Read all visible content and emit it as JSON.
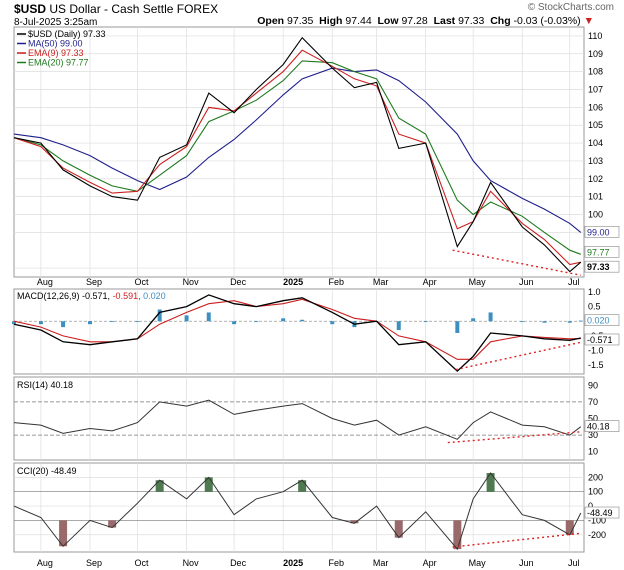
{
  "header": {
    "symbol": "$USD",
    "name": "US Dollar - Cash Settle",
    "exchange": "FOREX",
    "date": "8-Jul-2025 3:25am",
    "watermark": "© StockCharts.com",
    "open_label": "Open",
    "open": "97.35",
    "high_label": "High",
    "high": "97.44",
    "low_label": "Low",
    "low": "97.28",
    "last_label": "Last",
    "last": "97.33",
    "chg_label": "Chg",
    "chg": "-0.03 (-0.03%)",
    "chg_arrow": "▼"
  },
  "colors": {
    "price": "#000000",
    "ma50": "#1f1f8c",
    "ema9": "#cc1f1f",
    "ema20": "#1f7a1f",
    "trend": "#dd2222",
    "hist": "#3d8fbf",
    "cci_pos": "#4f7a4f",
    "cci_neg": "#9a6a6a",
    "border": "#9a9a9a",
    "grid": "#dddddd"
  },
  "x_labels": [
    "Aug",
    "Sep",
    "Oct",
    "Nov",
    "Dec",
    "2025",
    "Feb",
    "Mar",
    "Apr",
    "May",
    "Jun",
    "Jul"
  ],
  "price_panel": {
    "legend": [
      {
        "text": "$USD (Daily) 97.33",
        "color": "#000000"
      },
      {
        "text": "MA(50) 99.00",
        "color": "#1f1f8c"
      },
      {
        "text": "EMA(9) 97.33",
        "color": "#cc1f1f"
      },
      {
        "text": "EMA(20) 97.77",
        "color": "#1f7a1f"
      }
    ],
    "y_ticks": [
      "110",
      "109",
      "108",
      "107",
      "106",
      "105",
      "104",
      "103",
      "102",
      "101",
      "100",
      "99",
      "97"
    ],
    "tags": {
      "ma50": "99.00",
      "ema20": "97.77",
      "last": "97.33"
    }
  },
  "macd_panel": {
    "label": "MACD(12,26,9)",
    "macd": "-0.571",
    "signal": "-0.591",
    "hist": "0.020",
    "y_ticks": [
      "1.0",
      "0.5",
      "0.0",
      "-0.5",
      "-1.0",
      "-1.5"
    ],
    "tags": {
      "hist": "0.020",
      "macd": "-0.571"
    }
  },
  "rsi_panel": {
    "label": "RSI(14) 40.18",
    "y_ticks": [
      "90",
      "70",
      "50",
      "30",
      "10"
    ],
    "tag": "40.18"
  },
  "cci_panel": {
    "label": "CCI(20) -48.49",
    "y_ticks": [
      "200",
      "100",
      "0",
      "-100",
      "-200"
    ],
    "tag": "-48.49"
  },
  "chart_data": [
    {
      "type": "line",
      "title": "$USD (Daily)",
      "x": [
        "2024-07-15",
        "2024-08-01",
        "2024-08-15",
        "2024-09-01",
        "2024-09-15",
        "2024-10-01",
        "2024-10-15",
        "2024-11-01",
        "2024-11-15",
        "2024-12-01",
        "2024-12-15",
        "2025-01-01",
        "2025-01-13",
        "2025-02-01",
        "2025-02-15",
        "2025-03-01",
        "2025-03-15",
        "2025-04-01",
        "2025-04-21",
        "2025-05-01",
        "2025-05-12",
        "2025-06-01",
        "2025-06-15",
        "2025-07-01",
        "2025-07-08"
      ],
      "series": [
        {
          "name": "$USD (Daily)",
          "values": [
            104.3,
            104.0,
            102.5,
            101.6,
            101.0,
            100.8,
            103.2,
            103.9,
            106.8,
            105.7,
            107.0,
            108.4,
            109.9,
            108.2,
            107.1,
            107.4,
            103.7,
            104.0,
            98.2,
            99.6,
            101.8,
            99.3,
            98.3,
            96.8,
            97.33
          ]
        },
        {
          "name": "MA(50)",
          "values": [
            104.5,
            104.3,
            103.9,
            103.3,
            102.6,
            101.9,
            101.4,
            102.1,
            103.2,
            104.2,
            105.3,
            106.7,
            107.6,
            108.2,
            108.0,
            108.1,
            107.5,
            106.3,
            104.5,
            103.0,
            101.9,
            100.9,
            100.3,
            99.5,
            99.0
          ]
        },
        {
          "name": "EMA(9)",
          "values": [
            104.3,
            103.8,
            102.6,
            101.8,
            101.2,
            101.3,
            102.8,
            103.8,
            106.0,
            105.8,
            106.8,
            108.0,
            109.2,
            108.3,
            107.6,
            107.2,
            104.5,
            104.0,
            99.2,
            99.6,
            101.3,
            99.5,
            98.6,
            97.2,
            97.33
          ]
        },
        {
          "name": "EMA(20)",
          "values": [
            104.3,
            103.9,
            103.0,
            102.2,
            101.6,
            101.3,
            102.2,
            103.3,
            105.2,
            105.8,
            106.4,
            107.5,
            108.6,
            108.5,
            108.0,
            107.6,
            105.4,
            104.5,
            100.8,
            100.0,
            100.7,
            99.9,
            99.0,
            98.0,
            97.77
          ]
        }
      ],
      "ylim": [
        96.5,
        110.5
      ]
    },
    {
      "type": "line",
      "title": "MACD(12,26,9)",
      "x": [
        "2024-07-15",
        "2024-08-01",
        "2024-08-15",
        "2024-09-01",
        "2024-09-15",
        "2024-10-01",
        "2024-10-15",
        "2024-11-01",
        "2024-11-15",
        "2024-12-01",
        "2024-12-15",
        "2025-01-01",
        "2025-01-13",
        "2025-02-01",
        "2025-02-15",
        "2025-03-01",
        "2025-03-15",
        "2025-04-01",
        "2025-04-21",
        "2025-05-01",
        "2025-05-12",
        "2025-06-01",
        "2025-06-15",
        "2025-07-01",
        "2025-07-08"
      ],
      "series": [
        {
          "name": "MACD",
          "values": [
            -0.1,
            -0.3,
            -0.7,
            -0.8,
            -0.7,
            -0.6,
            0.3,
            0.5,
            0.9,
            0.6,
            0.5,
            0.7,
            0.8,
            0.3,
            -0.1,
            0.0,
            -0.8,
            -0.7,
            -1.7,
            -1.2,
            -0.4,
            -0.5,
            -0.6,
            -0.65,
            -0.571
          ]
        },
        {
          "name": "Signal",
          "values": [
            0.0,
            -0.2,
            -0.5,
            -0.7,
            -0.7,
            -0.6,
            -0.1,
            0.3,
            0.6,
            0.7,
            0.5,
            0.6,
            0.75,
            0.4,
            0.1,
            0.0,
            -0.5,
            -0.7,
            -1.3,
            -1.3,
            -0.7,
            -0.5,
            -0.55,
            -0.6,
            -0.591
          ]
        },
        {
          "name": "Histogram",
          "values": [
            -0.1,
            -0.1,
            -0.2,
            -0.1,
            0.0,
            0.0,
            0.4,
            0.2,
            0.3,
            -0.1,
            0.0,
            0.1,
            0.05,
            -0.1,
            -0.2,
            0.0,
            -0.3,
            0.0,
            -0.4,
            0.1,
            0.3,
            0.0,
            -0.05,
            -0.05,
            0.02
          ]
        }
      ],
      "ylim": [
        -1.8,
        1.1
      ]
    },
    {
      "type": "line",
      "title": "RSI(14)",
      "x": [
        "2024-07-15",
        "2024-08-01",
        "2024-08-15",
        "2024-09-01",
        "2024-09-15",
        "2024-10-01",
        "2024-10-15",
        "2024-11-01",
        "2024-11-15",
        "2024-12-01",
        "2024-12-15",
        "2025-01-01",
        "2025-01-13",
        "2025-02-01",
        "2025-02-15",
        "2025-03-01",
        "2025-03-15",
        "2025-04-01",
        "2025-04-21",
        "2025-05-01",
        "2025-05-12",
        "2025-06-01",
        "2025-06-15",
        "2025-07-01",
        "2025-07-08"
      ],
      "series": [
        {
          "name": "RSI(14)",
          "values": [
            45,
            42,
            32,
            38,
            35,
            45,
            70,
            65,
            72,
            55,
            60,
            65,
            68,
            50,
            42,
            48,
            30,
            40,
            25,
            45,
            58,
            42,
            40,
            30,
            40.18
          ]
        }
      ],
      "ylim": [
        0,
        100
      ]
    },
    {
      "type": "line",
      "title": "CCI(20)",
      "x": [
        "2024-07-15",
        "2024-08-01",
        "2024-08-15",
        "2024-09-01",
        "2024-09-15",
        "2024-10-01",
        "2024-10-15",
        "2024-11-01",
        "2024-11-15",
        "2024-12-01",
        "2024-12-15",
        "2025-01-01",
        "2025-01-13",
        "2025-02-01",
        "2025-02-15",
        "2025-03-01",
        "2025-03-15",
        "2025-04-01",
        "2025-04-21",
        "2025-05-01",
        "2025-05-12",
        "2025-06-01",
        "2025-06-15",
        "2025-07-01",
        "2025-07-08"
      ],
      "series": [
        {
          "name": "CCI(20)",
          "values": [
            0,
            -80,
            -280,
            -100,
            -150,
            20,
            180,
            50,
            200,
            -60,
            50,
            100,
            180,
            -80,
            -120,
            0,
            -220,
            -40,
            -300,
            50,
            230,
            -60,
            -100,
            -200,
            -48.49
          ]
        }
      ],
      "ylim": [
        -320,
        300
      ]
    }
  ]
}
